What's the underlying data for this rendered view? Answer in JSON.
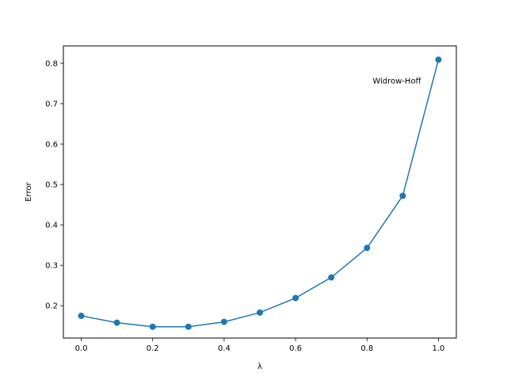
{
  "chart_data": {
    "type": "line",
    "xlabel": "λ",
    "ylabel": "Error",
    "xlim": [
      -0.05,
      1.05
    ],
    "ylim": [
      0.12,
      0.843
    ],
    "xticks": [
      0.0,
      0.2,
      0.4,
      0.6,
      0.8,
      1.0
    ],
    "xtick_labels": [
      "0.0",
      "0.2",
      "0.4",
      "0.6",
      "0.8",
      "1.0"
    ],
    "yticks": [
      0.2,
      0.3,
      0.4,
      0.5,
      0.6,
      0.7,
      0.8
    ],
    "ytick_labels": [
      "0.2",
      "0.3",
      "0.4",
      "0.5",
      "0.6",
      "0.7",
      "0.8"
    ],
    "grid": false,
    "series": [
      {
        "color": "#1f77b4",
        "marker": "circle",
        "x": [
          0.0,
          0.1,
          0.2,
          0.3,
          0.4,
          0.5,
          0.6,
          0.7,
          0.8,
          0.9,
          1.0
        ],
        "y": [
          0.175,
          0.158,
          0.148,
          0.148,
          0.16,
          0.183,
          0.219,
          0.27,
          0.343,
          0.472,
          0.809
        ]
      }
    ],
    "annotations": [
      {
        "text": "Widrow-Hoff",
        "x": 1.0,
        "y": 0.809
      }
    ]
  }
}
